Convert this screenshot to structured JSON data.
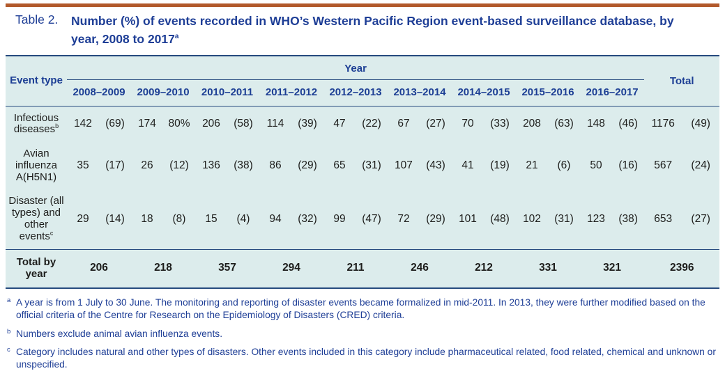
{
  "title": {
    "label": "Table 2.",
    "text": "Number (%) of events recorded in WHO’s Western Pacific Region event-based surveillance database, by year, 2008 to 2017",
    "superscript": "a"
  },
  "colors": {
    "top_rule": "#b2592b",
    "title_blue": "#1e3e96",
    "table_background": "#dcecec",
    "table_border_navy": "#264a7e",
    "body_text": "#1d1d1b"
  },
  "table": {
    "event_type_header": "Event type",
    "year_header": "Year",
    "total_header": "Total",
    "years": [
      "2008–2009",
      "2009–2010",
      "2010–2011",
      "2011–2012",
      "2012–2013",
      "2013–2014",
      "2014–2015",
      "2015–2016",
      "2016–2017"
    ],
    "rows": [
      {
        "label": "Infectious diseases",
        "marker": "b",
        "values": [
          [
            "142",
            "(69)"
          ],
          [
            "174",
            "80%"
          ],
          [
            "206",
            "(58)"
          ],
          [
            "114",
            "(39)"
          ],
          [
            "47",
            "(22)"
          ],
          [
            "67",
            "(27)"
          ],
          [
            "70",
            "(33)"
          ],
          [
            "208",
            "(63)"
          ],
          [
            "148",
            "(46)"
          ]
        ],
        "total": [
          "1176",
          "(49)"
        ]
      },
      {
        "label": "Avian influenza A(H5N1)",
        "marker": "",
        "values": [
          [
            "35",
            "(17)"
          ],
          [
            "26",
            "(12)"
          ],
          [
            "136",
            "(38)"
          ],
          [
            "86",
            "(29)"
          ],
          [
            "65",
            "(31)"
          ],
          [
            "107",
            "(43)"
          ],
          [
            "41",
            "(19)"
          ],
          [
            "21",
            "(6)"
          ],
          [
            "50",
            "(16)"
          ]
        ],
        "total": [
          "567",
          "(24)"
        ]
      },
      {
        "label": "Disaster (all types) and other events",
        "marker": "c",
        "values": [
          [
            "29",
            "(14)"
          ],
          [
            "18",
            "(8)"
          ],
          [
            "15",
            "(4)"
          ],
          [
            "94",
            "(32)"
          ],
          [
            "99",
            "(47)"
          ],
          [
            "72",
            "(29)"
          ],
          [
            "101",
            "(48)"
          ],
          [
            "102",
            "(31)"
          ],
          [
            "123",
            "(38)"
          ]
        ],
        "total": [
          "653",
          "(27)"
        ]
      }
    ],
    "total_row": {
      "label": "Total by year",
      "values": [
        "206",
        "218",
        "357",
        "294",
        "211",
        "246",
        "212",
        "331",
        "321"
      ],
      "total": "2396"
    }
  },
  "footnotes": [
    {
      "marker": "a",
      "text": "A year is from 1 July to 30 June. The monitoring and reporting of disaster events became formalized in mid-2011. In 2013, they were further modified based on the official criteria of the Centre for Research on the Epidemiology of Disasters (CRED) criteria."
    },
    {
      "marker": "b",
      "text": "Numbers exclude animal avian influenza events."
    },
    {
      "marker": "c",
      "text": "Category includes natural and other types of disasters. Other events included in this category include pharmaceutical related, food related, chemical and unknown or unspecified."
    }
  ]
}
